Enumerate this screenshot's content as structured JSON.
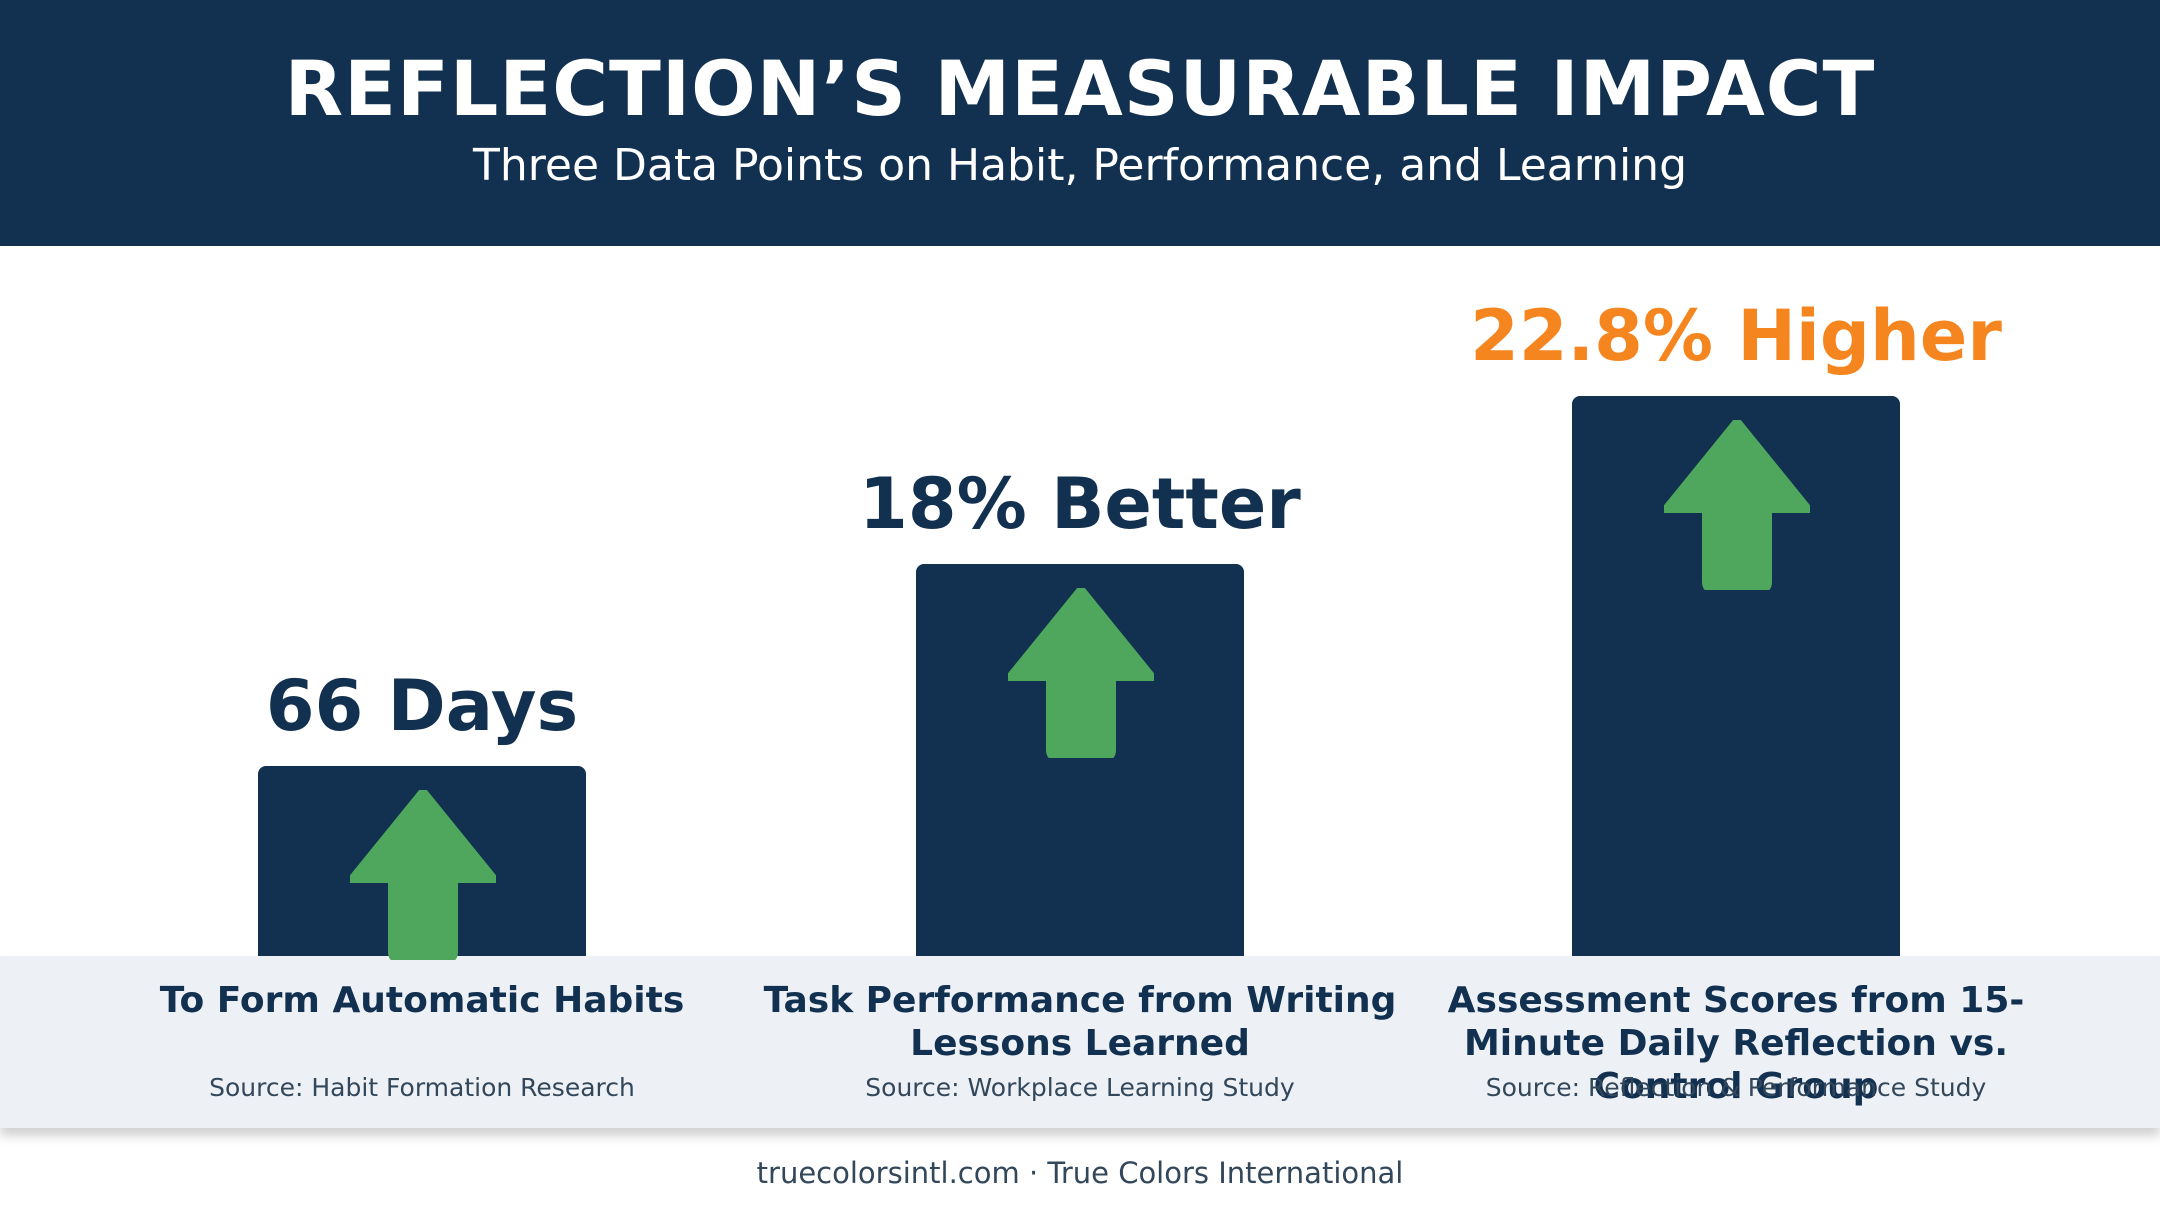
{
  "header": {
    "title": "REFLECTION’S MEASURABLE IMPACT",
    "subtitle": "Three Data Points on Habit, Performance, and Learning"
  },
  "chart_data": {
    "type": "bar",
    "title": "REFLECTION’S MEASURABLE IMPACT",
    "subtitle": "Three Data Points on Habit, Performance, and Learning",
    "categories": [
      "To Form Automatic Habits",
      "Task Performance from Writing Lessons Learned",
      "Assessment Scores from 15-Minute Daily Reflection vs. Control Group"
    ],
    "value_labels": [
      "66 Days",
      "18% Better",
      "22.8% Higher"
    ],
    "sources": [
      "Source: Habit Formation Research",
      "Source: Workplace Learning Study",
      "Source: Reflection & Performance Study"
    ],
    "relative_heights": [
      0.34,
      0.7,
      1.0
    ],
    "bar_color": "#12304f",
    "arrow_color": "#4fa75e",
    "value_label_colors": [
      "#12304f",
      "#12304f",
      "#f5861f"
    ],
    "icon": "up-arrow-icon",
    "grid": false,
    "legend": "none"
  },
  "footer": {
    "text": "truecolorsintl.com · True Colors International"
  },
  "colors": {
    "header_bg": "#12304f",
    "band_bg": "#edf1f6",
    "highlight": "#f5861f"
  }
}
